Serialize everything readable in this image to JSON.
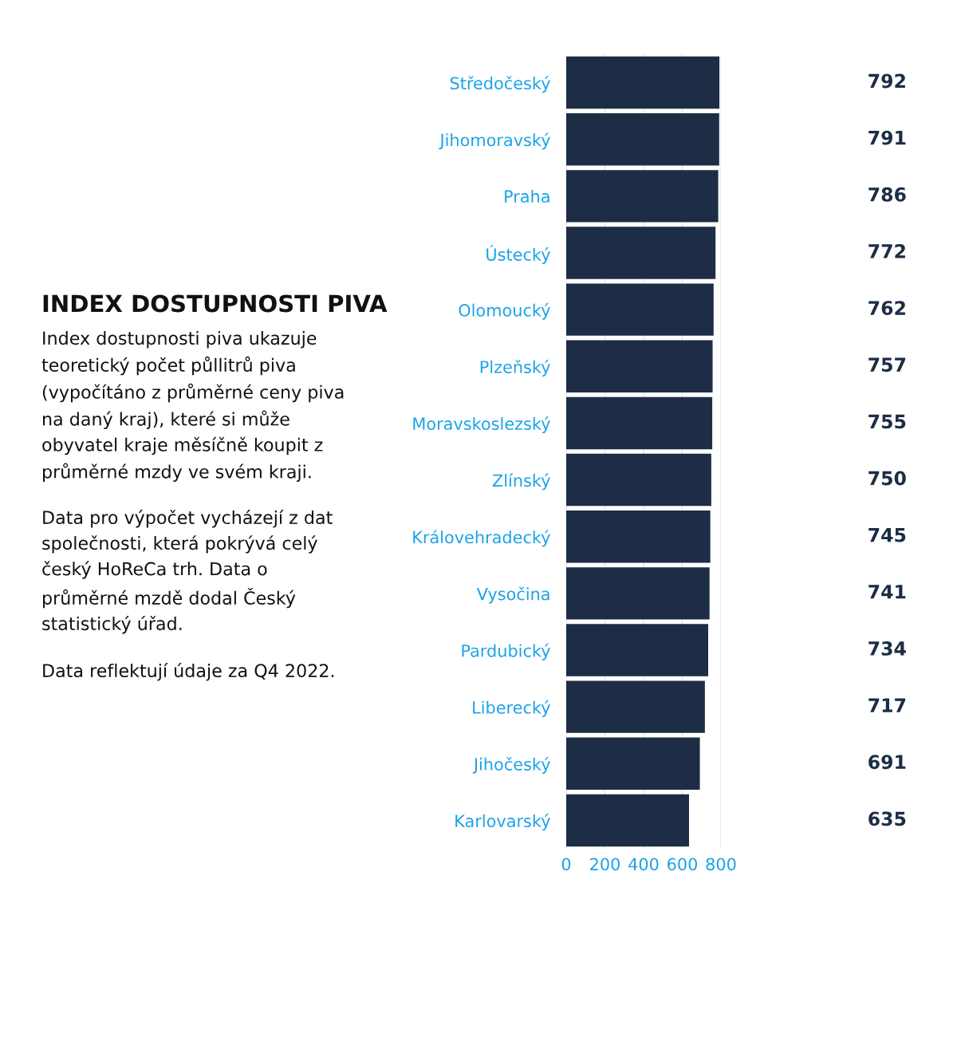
{
  "chart_data": {
    "type": "bar",
    "orientation": "horizontal",
    "title": "INDEX DOSTUPNOSTI PIVA",
    "annotations": [
      "Index dostupnosti piva ukazuje teoretický počet půllitrů piva (vypočítáno z průměrné ceny piva na daný kraj), které si může obyvatel kraje měsíčně koupit z průměrné mzdy ve svém kraji.",
      "Data pro výpočet vycházejí z dat společnosti, která pokrývá celý český HoReCa trh. Data o průměrné mzdě dodal Český statistický úřad.",
      "Data reflektují údaje za Q4 2022."
    ],
    "categories": [
      "Středočeský",
      "Jihomoravský",
      "Praha",
      "Ústecký",
      "Olomoucký",
      "Plzeňský",
      "Moravskoslezský",
      "Zlínský",
      "Královehradecký",
      "Vysočina",
      "Pardubický",
      "Liberecký",
      "Jihočeský",
      "Karlovarský"
    ],
    "values": [
      792,
      791,
      786,
      772,
      762,
      757,
      755,
      750,
      745,
      741,
      734,
      717,
      691,
      635
    ],
    "color": "#1c2d45",
    "xlim": [
      0,
      800
    ],
    "xticks": [
      0,
      200,
      400,
      600,
      800
    ],
    "grid": "x",
    "data_labels": true
  }
}
